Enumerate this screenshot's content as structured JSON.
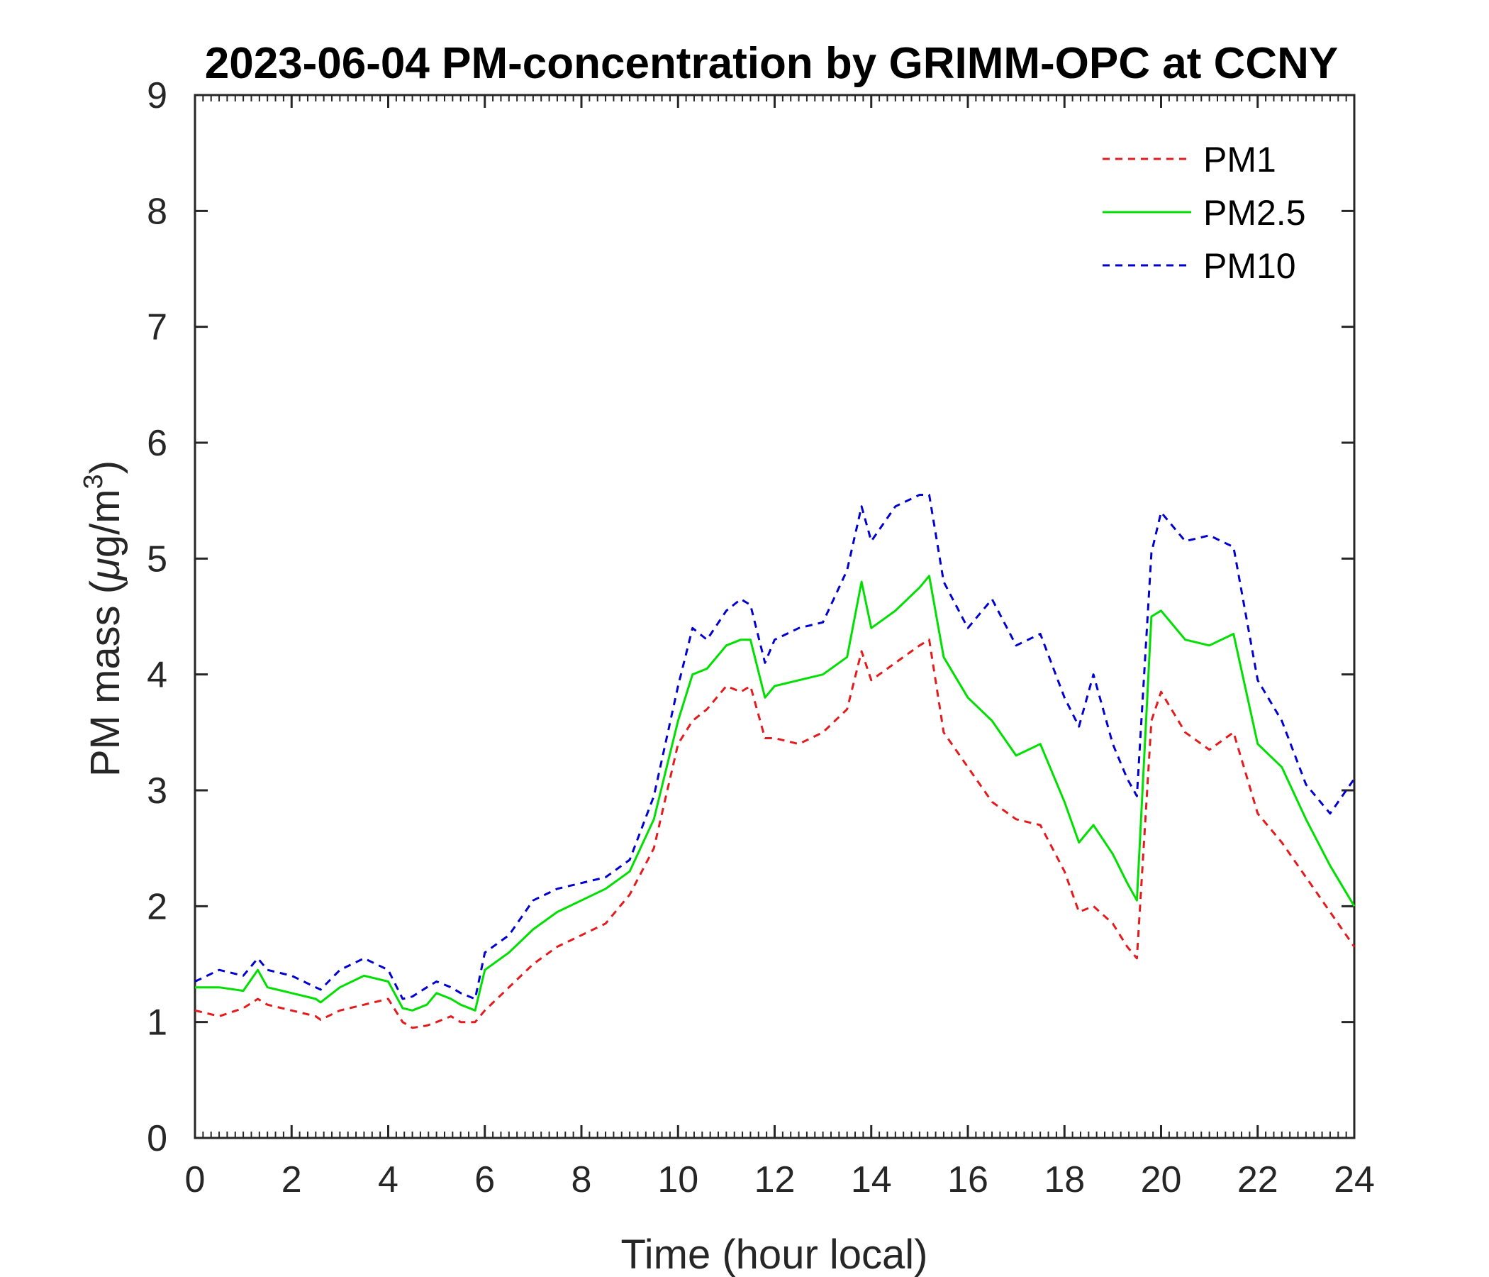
{
  "chart_data": {
    "type": "line",
    "title": "2023-06-04 PM-concentration by GRIMM-OPC at CCNY",
    "xlabel": "Time (hour local)",
    "ylabel": "PM mass (μg/m3)",
    "ylabel_parts": {
      "main": "PM mass (",
      "mu": "μ",
      "unit": "g/m",
      "exponent": "3",
      "close": ")"
    },
    "xlim": [
      0,
      24
    ],
    "ylim": [
      0,
      9
    ],
    "xticks": [
      0,
      2,
      4,
      6,
      8,
      10,
      12,
      14,
      16,
      18,
      20,
      22,
      24
    ],
    "yticks": [
      0,
      1,
      2,
      3,
      4,
      5,
      6,
      7,
      8,
      9
    ],
    "grid": false,
    "legend_position": "top-right",
    "x": [
      0,
      0.5,
      1,
      1.3,
      1.5,
      2,
      2.5,
      2.6,
      3,
      3.5,
      4,
      4.3,
      4.5,
      4.8,
      5,
      5.3,
      5.5,
      5.8,
      6,
      6.5,
      7,
      7.5,
      8,
      8.5,
      9,
      9.5,
      10,
      10.3,
      10.6,
      11,
      11.3,
      11.5,
      11.8,
      12,
      12.5,
      13,
      13.5,
      13.8,
      14,
      14.5,
      15,
      15.2,
      15.5,
      16,
      16.5,
      17,
      17.5,
      18,
      18.3,
      18.6,
      19,
      19.3,
      19.5,
      19.8,
      20,
      20.5,
      21,
      21.5,
      22,
      22.5,
      23,
      23.5,
      24
    ],
    "series": [
      {
        "name": "PM1",
        "color": "#e41a1c",
        "style": "dashed",
        "values": [
          1.1,
          1.05,
          1.12,
          1.2,
          1.15,
          1.1,
          1.05,
          1.02,
          1.1,
          1.15,
          1.2,
          1.0,
          0.95,
          0.97,
          1.0,
          1.05,
          1.0,
          1.0,
          1.1,
          1.3,
          1.5,
          1.65,
          1.75,
          1.85,
          2.1,
          2.5,
          3.4,
          3.6,
          3.7,
          3.9,
          3.85,
          3.9,
          3.45,
          3.45,
          3.4,
          3.5,
          3.7,
          4.2,
          3.95,
          4.1,
          4.25,
          4.3,
          3.5,
          3.2,
          2.9,
          2.75,
          2.7,
          2.3,
          1.95,
          2.0,
          1.85,
          1.65,
          1.55,
          3.6,
          3.85,
          3.5,
          3.35,
          3.5,
          2.8,
          2.55,
          2.25,
          1.95,
          1.65
        ]
      },
      {
        "name": "PM2.5",
        "color": "#00e000",
        "style": "solid",
        "values": [
          1.3,
          1.3,
          1.27,
          1.45,
          1.3,
          1.25,
          1.2,
          1.17,
          1.3,
          1.4,
          1.35,
          1.12,
          1.1,
          1.15,
          1.25,
          1.2,
          1.15,
          1.1,
          1.45,
          1.6,
          1.8,
          1.95,
          2.05,
          2.15,
          2.3,
          2.75,
          3.6,
          4.0,
          4.05,
          4.25,
          4.3,
          4.3,
          3.8,
          3.9,
          3.95,
          4.0,
          4.15,
          4.8,
          4.4,
          4.55,
          4.75,
          4.85,
          4.15,
          3.8,
          3.6,
          3.3,
          3.4,
          2.9,
          2.55,
          2.7,
          2.45,
          2.2,
          2.05,
          4.5,
          4.55,
          4.3,
          4.25,
          4.35,
          3.4,
          3.2,
          2.75,
          2.35,
          2.0
        ]
      },
      {
        "name": "PM10",
        "color": "#0000d0",
        "style": "dashed",
        "values": [
          1.35,
          1.45,
          1.4,
          1.55,
          1.45,
          1.4,
          1.3,
          1.28,
          1.45,
          1.55,
          1.45,
          1.2,
          1.22,
          1.3,
          1.35,
          1.3,
          1.25,
          1.2,
          1.6,
          1.75,
          2.05,
          2.15,
          2.2,
          2.25,
          2.4,
          2.95,
          3.9,
          4.4,
          4.3,
          4.55,
          4.65,
          4.6,
          4.1,
          4.3,
          4.4,
          4.45,
          4.9,
          5.45,
          5.15,
          5.45,
          5.55,
          5.55,
          4.8,
          4.4,
          4.65,
          4.25,
          4.35,
          3.8,
          3.55,
          4.0,
          3.4,
          3.1,
          2.95,
          5.05,
          5.4,
          5.15,
          5.2,
          5.1,
          3.95,
          3.6,
          3.05,
          2.8,
          3.1
        ]
      }
    ]
  }
}
